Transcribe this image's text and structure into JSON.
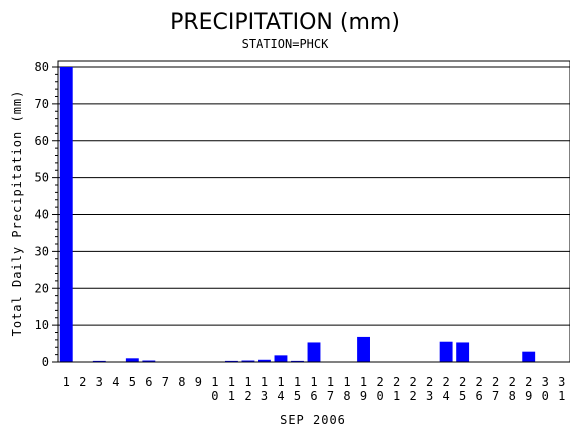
{
  "chart_data": {
    "type": "bar",
    "title": "PRECIPITATION (mm)",
    "subtitle": "STATION=PHCK",
    "xlabel": "SEP 2006",
    "ylabel": "Total Daily Precipitation (mm)",
    "ylim": [
      0,
      80
    ],
    "yticks": [
      0,
      10,
      20,
      30,
      40,
      50,
      60,
      70,
      80
    ],
    "grid": true,
    "bar_color": "#0000ff",
    "categories": [
      "1",
      "2",
      "3",
      "4",
      "5",
      "6",
      "7",
      "8",
      "9",
      "10",
      "11",
      "12",
      "13",
      "14",
      "15",
      "16",
      "17",
      "18",
      "19",
      "20",
      "21",
      "22",
      "23",
      "24",
      "25",
      "26",
      "27",
      "28",
      "29",
      "30",
      "31"
    ],
    "values": [
      80,
      0,
      0.3,
      0,
      1.0,
      0.4,
      0,
      0,
      0,
      0,
      0.3,
      0.4,
      0.6,
      1.8,
      0.3,
      5.3,
      0,
      0,
      6.8,
      0,
      0,
      0,
      0,
      5.5,
      5.3,
      0,
      0,
      0,
      2.8,
      0,
      0
    ]
  }
}
